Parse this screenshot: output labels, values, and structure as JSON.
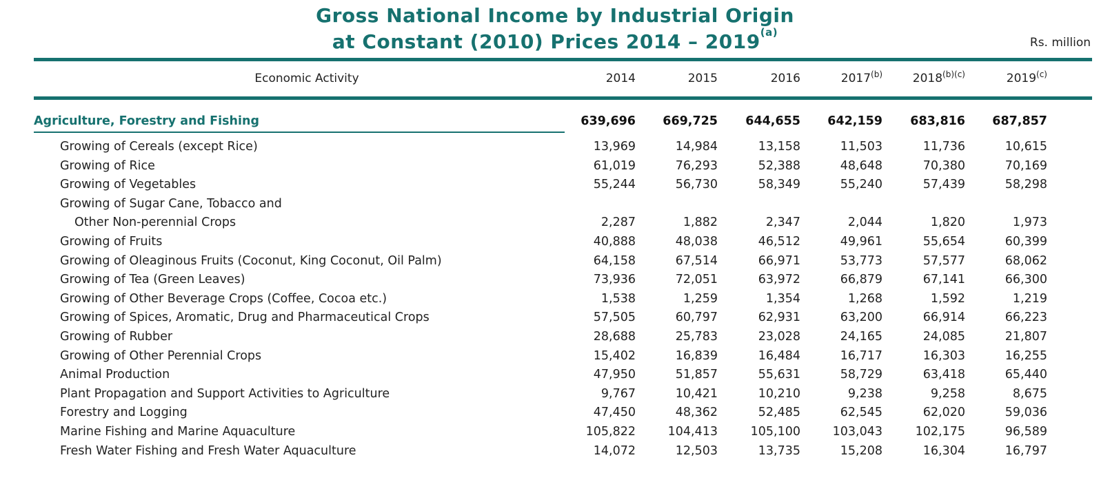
{
  "title_line1": "Gross National Income by Industrial Origin",
  "title_line2": "at Constant (2010) Prices 2014 – 2019",
  "title_note": "(a)",
  "unit": "Rs. million",
  "header": {
    "label": "Economic Activity",
    "years": [
      {
        "year": "2014",
        "note": ""
      },
      {
        "year": "2015",
        "note": ""
      },
      {
        "year": "2016",
        "note": ""
      },
      {
        "year": "2017",
        "note": "(b)"
      },
      {
        "year": "2018",
        "note": "(b)(c)"
      },
      {
        "year": "2019",
        "note": "(c)"
      }
    ]
  },
  "section": {
    "label": "Agriculture, Forestry and Fishing",
    "values": [
      "639,696",
      "669,725",
      "644,655",
      "642,159",
      "683,816",
      "687,857"
    ]
  },
  "rows": [
    {
      "label": "Growing of Cereals (except Rice)",
      "values": [
        "13,969",
        "14,984",
        "13,158",
        "11,503",
        "11,736",
        "10,615"
      ]
    },
    {
      "label": "Growing of Rice",
      "values": [
        "61,019",
        "76,293",
        "52,388",
        "48,648",
        "70,380",
        "70,169"
      ]
    },
    {
      "label": "Growing of Vegetables",
      "values": [
        "55,244",
        "56,730",
        "58,349",
        "55,240",
        "57,439",
        "58,298"
      ]
    },
    {
      "label": "Growing of Sugar Cane, Tobacco and",
      "values": [
        "",
        "",
        "",
        "",
        "",
        ""
      ]
    },
    {
      "label": "Other Non-perennial Crops",
      "values": [
        "2,287",
        "1,882",
        "2,347",
        "2,044",
        "1,820",
        "1,973"
      ],
      "indent": true
    },
    {
      "label": "Growing of Fruits",
      "values": [
        "40,888",
        "48,038",
        "46,512",
        "49,961",
        "55,654",
        "60,399"
      ]
    },
    {
      "label": "Growing of Oleaginous Fruits (Coconut, King Coconut, Oil Palm)",
      "values": [
        "64,158",
        "67,514",
        "66,971",
        "53,773",
        "57,577",
        "68,062"
      ]
    },
    {
      "label": "Growing of Tea (Green Leaves)",
      "values": [
        "73,936",
        "72,051",
        "63,972",
        "66,879",
        "67,141",
        "66,300"
      ]
    },
    {
      "label": "Growing of Other Beverage Crops (Coffee, Cocoa etc.)",
      "values": [
        "1,538",
        "1,259",
        "1,354",
        "1,268",
        "1,592",
        "1,219"
      ]
    },
    {
      "label": "Growing of Spices, Aromatic, Drug and Pharmaceutical Crops",
      "values": [
        "57,505",
        "60,797",
        "62,931",
        "63,200",
        "66,914",
        "66,223"
      ]
    },
    {
      "label": "Growing of Rubber",
      "values": [
        "28,688",
        "25,783",
        "23,028",
        "24,165",
        "24,085",
        "21,807"
      ]
    },
    {
      "label": "Growing of Other Perennial Crops",
      "values": [
        "15,402",
        "16,839",
        "16,484",
        "16,717",
        "16,303",
        "16,255"
      ]
    },
    {
      "label": "Animal Production",
      "values": [
        "47,950",
        "51,857",
        "55,631",
        "58,729",
        "63,418",
        "65,440"
      ]
    },
    {
      "label": "Plant Propagation and Support Activities to Agriculture",
      "values": [
        "9,767",
        "10,421",
        "10,210",
        "9,238",
        "9,258",
        "8,675"
      ]
    },
    {
      "label": "Forestry and Logging",
      "values": [
        "47,450",
        "48,362",
        "52,485",
        "62,545",
        "62,020",
        "59,036"
      ]
    },
    {
      "label": "Marine Fishing and Marine Aquaculture",
      "values": [
        "105,822",
        "104,413",
        "105,100",
        "103,043",
        "102,175",
        "96,589"
      ]
    },
    {
      "label": "Fresh Water Fishing and Fresh Water Aquaculture",
      "values": [
        "14,072",
        "12,503",
        "13,735",
        "15,208",
        "16,304",
        "16,797"
      ]
    }
  ]
}
